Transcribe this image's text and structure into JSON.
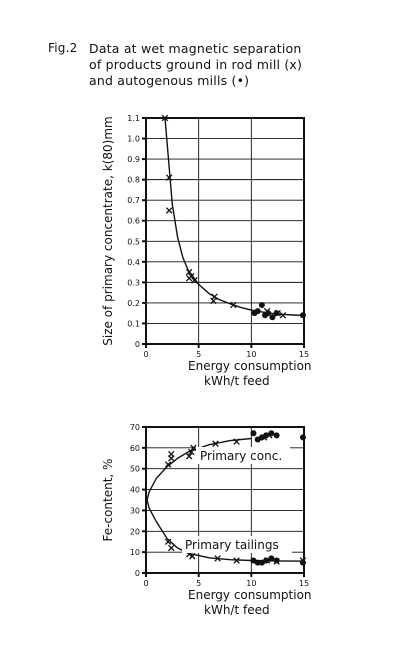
{
  "figure": {
    "label": "Fig.2",
    "caption_lines": [
      "Data at wet magnetic separation",
      "of products ground in rod mill (x)",
      "and autogenous mills (•)"
    ]
  },
  "chart_data": [
    {
      "type": "scatter",
      "title": "",
      "xlabel": "Energy consumption",
      "xlabel_line2": "kWh/t feed",
      "ylabel": "Size of primary concentrate, k(80)mm",
      "xlim": [
        0,
        15
      ],
      "ylim": [
        0,
        1.1
      ],
      "x_ticks": [
        "0",
        "5",
        "10",
        "15"
      ],
      "y_ticks": [
        "0",
        "0.1",
        "0.2",
        "0.3",
        "0.4",
        "0.5",
        "0.6",
        "0.7",
        "0.8",
        "0.9",
        "1.0",
        "1.1"
      ],
      "grid": true,
      "series": [
        {
          "name": "rod mill",
          "marker": "x",
          "points": [
            [
              1.8,
              1.1
            ],
            [
              2.2,
              0.81
            ],
            [
              2.2,
              0.65
            ],
            [
              4.1,
              0.35
            ],
            [
              4.3,
              0.33
            ],
            [
              4.1,
              0.32
            ],
            [
              4.6,
              0.31
            ],
            [
              6.5,
              0.23
            ],
            [
              6.4,
              0.21
            ],
            [
              8.3,
              0.19
            ],
            [
              11.5,
              0.16
            ],
            [
              12.5,
              0.15
            ],
            [
              13.0,
              0.14
            ]
          ]
        },
        {
          "name": "autogenous mills",
          "marker": "dot",
          "points": [
            [
              10.3,
              0.15
            ],
            [
              10.6,
              0.16
            ],
            [
              11.0,
              0.19
            ],
            [
              11.3,
              0.14
            ],
            [
              11.6,
              0.15
            ],
            [
              12.0,
              0.13
            ],
            [
              12.4,
              0.15
            ],
            [
              14.9,
              0.14
            ]
          ]
        }
      ],
      "fitted_curve": [
        [
          1.8,
          1.1
        ],
        [
          2.5,
          0.68
        ],
        [
          3.0,
          0.52
        ],
        [
          3.5,
          0.42
        ],
        [
          4.0,
          0.36
        ],
        [
          5.0,
          0.29
        ],
        [
          6.0,
          0.245
        ],
        [
          7.0,
          0.215
        ],
        [
          8.0,
          0.195
        ],
        [
          9.0,
          0.178
        ],
        [
          10.0,
          0.165
        ],
        [
          11.0,
          0.156
        ],
        [
          12.0,
          0.149
        ],
        [
          13.0,
          0.144
        ],
        [
          14.0,
          0.141
        ],
        [
          15.0,
          0.139
        ]
      ]
    },
    {
      "type": "scatter",
      "title": "",
      "xlabel": "Energy consumption",
      "xlabel_line2": "kWh/t feed",
      "ylabel": "Fe-content, %",
      "xlim": [
        0,
        15
      ],
      "ylim": [
        0,
        70
      ],
      "x_ticks": [
        "0",
        "5",
        "10",
        "15"
      ],
      "y_ticks": [
        "0",
        "10",
        "20",
        "30",
        "40",
        "50",
        "60",
        "70"
      ],
      "grid": true,
      "annotations": [
        "Primary conc.",
        "Primary tailings"
      ],
      "series": [
        {
          "name": "rod mill",
          "marker": "x",
          "points": [
            [
              2.1,
              52
            ],
            [
              2.4,
              55
            ],
            [
              2.4,
              57
            ],
            [
              4.1,
              56
            ],
            [
              4.3,
              58
            ],
            [
              4.5,
              60
            ],
            [
              6.6,
              62
            ],
            [
              8.6,
              63
            ],
            [
              11.2,
              65
            ],
            [
              11.7,
              66
            ],
            [
              2.1,
              15
            ],
            [
              2.4,
              12
            ],
            [
              4.1,
              9
            ],
            [
              4.4,
              8
            ],
            [
              6.8,
              7
            ],
            [
              8.6,
              6
            ],
            [
              11.5,
              6
            ],
            [
              12.4,
              5.5
            ],
            [
              14.9,
              6
            ]
          ]
        },
        {
          "name": "autogenous mills",
          "marker": "dot",
          "points": [
            [
              10.2,
              67
            ],
            [
              10.6,
              64
            ],
            [
              11.0,
              65
            ],
            [
              11.4,
              66
            ],
            [
              11.9,
              67
            ],
            [
              12.4,
              66
            ],
            [
              14.9,
              65
            ],
            [
              10.2,
              6
            ],
            [
              10.6,
              5
            ],
            [
              11.0,
              5
            ],
            [
              11.4,
              6
            ],
            [
              11.9,
              7
            ],
            [
              12.4,
              6
            ],
            [
              14.9,
              5
            ]
          ]
        }
      ],
      "fitted_curve": [
        [
          10.0,
          64.5
        ],
        [
          8.0,
          63.5
        ],
        [
          6.0,
          61.5
        ],
        [
          4.0,
          58
        ],
        [
          3.0,
          55
        ],
        [
          2.0,
          51
        ],
        [
          1.0,
          45.5
        ],
        [
          0.3,
          39
        ],
        [
          0.1,
          35
        ],
        [
          0.3,
          31
        ],
        [
          1.0,
          24.5
        ],
        [
          2.0,
          16.5
        ],
        [
          3.0,
          12
        ],
        [
          4.0,
          9.5
        ],
        [
          6.0,
          7.3
        ],
        [
          8.0,
          6.4
        ],
        [
          10.0,
          6.0
        ],
        [
          12.0,
          5.8
        ],
        [
          14.0,
          5.7
        ],
        [
          15.0,
          5.7
        ]
      ]
    }
  ]
}
